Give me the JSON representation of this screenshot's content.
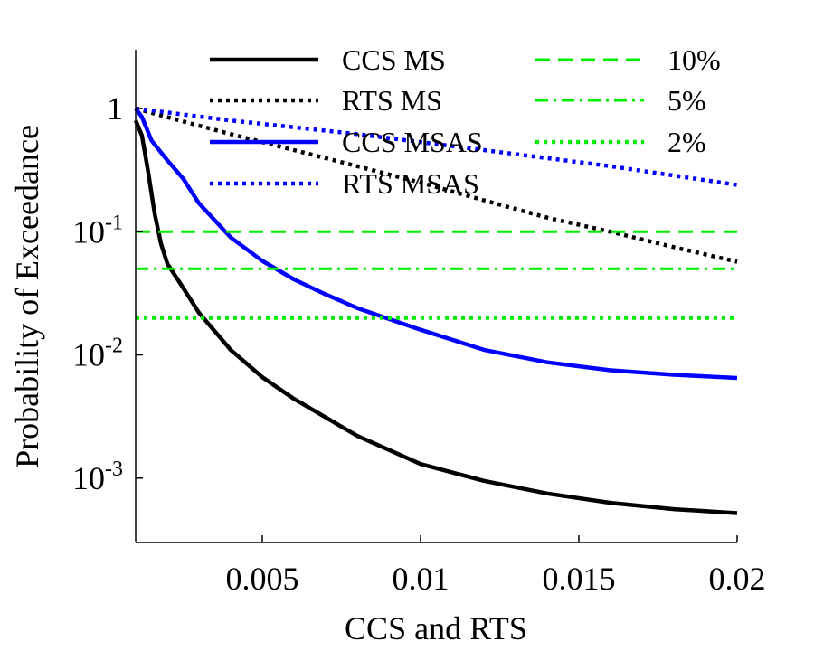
{
  "chart_data": {
    "type": "line",
    "title": "",
    "xlabel": "CCS and RTS",
    "ylabel": "Probability of Exceedance",
    "xlim": [
      0.001,
      0.02
    ],
    "ylim": [
      0.0003,
      3.0
    ],
    "yscale": "log",
    "grid": false,
    "legend_position": "top",
    "x_ticks": [
      {
        "value": 0.005,
        "label": "0.005"
      },
      {
        "value": 0.01,
        "label": "0.01"
      },
      {
        "value": 0.015,
        "label": "0.015"
      },
      {
        "value": 0.02,
        "label": "0.02"
      }
    ],
    "y_ticks": [
      {
        "value": 1,
        "base": "1",
        "exp": ""
      },
      {
        "value": 0.1,
        "base": "10",
        "exp": "-1"
      },
      {
        "value": 0.01,
        "base": "10",
        "exp": "-2"
      },
      {
        "value": 0.001,
        "base": "10",
        "exp": "-3"
      }
    ],
    "series": [
      {
        "name": "CCS MS",
        "color": "#000000",
        "dash": "solid",
        "x": [
          0.001,
          0.0012,
          0.0014,
          0.0016,
          0.0018,
          0.002,
          0.0025,
          0.003,
          0.004,
          0.005,
          0.006,
          0.008,
          0.01,
          0.012,
          0.014,
          0.016,
          0.018,
          0.02
        ],
        "y": [
          0.8,
          0.6,
          0.3,
          0.14,
          0.08,
          0.055,
          0.035,
          0.022,
          0.011,
          0.0066,
          0.0044,
          0.0022,
          0.0013,
          0.00095,
          0.00075,
          0.00063,
          0.00056,
          0.00052
        ]
      },
      {
        "name": "RTS MS",
        "color": "#000000",
        "dash": "dotted",
        "x": [
          0.001,
          0.002,
          0.004,
          0.006,
          0.008,
          0.01,
          0.012,
          0.014,
          0.016,
          0.018,
          0.02
        ],
        "y": [
          1.0,
          0.85,
          0.62,
          0.46,
          0.34,
          0.25,
          0.18,
          0.13,
          0.1,
          0.075,
          0.057
        ]
      },
      {
        "name": "CCS MSAS",
        "color": "#0000ff",
        "dash": "solid",
        "x": [
          0.001,
          0.0012,
          0.0015,
          0.002,
          0.0025,
          0.003,
          0.004,
          0.005,
          0.006,
          0.007,
          0.008,
          0.01,
          0.012,
          0.014,
          0.016,
          0.018,
          0.02
        ],
        "y": [
          1.0,
          0.85,
          0.55,
          0.38,
          0.27,
          0.17,
          0.09,
          0.058,
          0.041,
          0.031,
          0.024,
          0.016,
          0.011,
          0.0087,
          0.0075,
          0.0069,
          0.0065
        ]
      },
      {
        "name": "RTS MSAS",
        "color": "#0000ff",
        "dash": "dotted",
        "x": [
          0.001,
          0.004,
          0.008,
          0.012,
          0.016,
          0.02
        ],
        "y": [
          1.0,
          0.8,
          0.62,
          0.46,
          0.34,
          0.24
        ]
      },
      {
        "name": "10%",
        "color": "#00ee00",
        "dash": "dashed",
        "x": [
          0.001,
          0.02
        ],
        "y": [
          0.1,
          0.1
        ]
      },
      {
        "name": "5%",
        "color": "#00ee00",
        "dash": "dashdot",
        "x": [
          0.001,
          0.02
        ],
        "y": [
          0.05,
          0.05
        ]
      },
      {
        "name": "2%",
        "color": "#00ee00",
        "dash": "dotted",
        "x": [
          0.001,
          0.02
        ],
        "y": [
          0.02,
          0.02
        ]
      }
    ]
  }
}
